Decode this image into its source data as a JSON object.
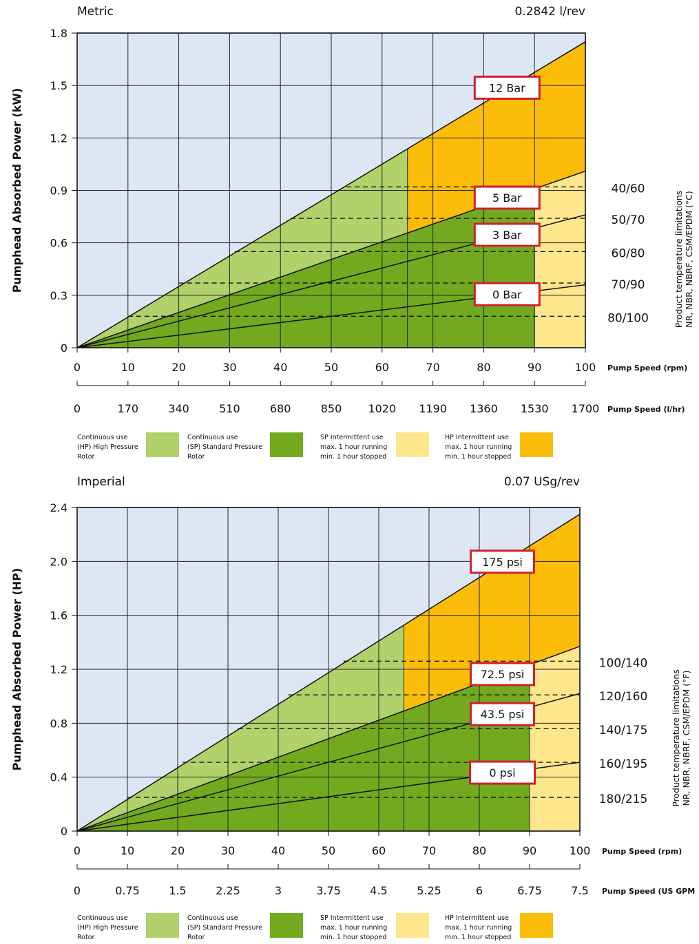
{
  "chart_data": [
    {
      "type": "area",
      "title": "Metric",
      "subtitle": "0.2842 l/rev",
      "ylabel": "Pumphead Absorbed Power (kW)",
      "ylim": [
        0,
        1.8
      ],
      "yticks": [
        "1.8",
        "1.5",
        "1.2",
        "0.9",
        "0.6",
        "0.3",
        "0"
      ],
      "xlim": [
        0,
        100
      ],
      "xticks": [
        "0",
        "10",
        "20",
        "30",
        "40",
        "50",
        "60",
        "70",
        "80",
        "90",
        "100"
      ],
      "xlabel": "Pump Speed (rpm)",
      "x2ticks": [
        "0",
        "170",
        "340",
        "510",
        "680",
        "850",
        "1020",
        "1190",
        "1360",
        "1530",
        "1700"
      ],
      "x2label": "Pump Speed (l/hr)",
      "pressure_lines": [
        {
          "label": "12 Bar",
          "end": 1.75
        },
        {
          "label": "5 Bar",
          "end": 1.01
        },
        {
          "label": "3 Bar",
          "end": 0.76
        },
        {
          "label": "0 Bar",
          "end": 0.36
        }
      ],
      "hp_limit_x": 65,
      "sp_limit_x": 90,
      "temp_lines": [
        {
          "label": "40/60",
          "y": 0.92,
          "x_start": 53
        },
        {
          "label": "50/70",
          "y": 0.74,
          "x_start": 42
        },
        {
          "label": "60/80",
          "y": 0.55,
          "x_start": 31
        },
        {
          "label": "70/90",
          "y": 0.37,
          "x_start": 20
        },
        {
          "label": "80/100",
          "y": 0.18,
          "x_start": 10
        }
      ],
      "temp_title_1": "Product temperature limitations",
      "temp_title_2": "NR, NBR, NBRF, CSM/EPDM  (°C)"
    },
    {
      "type": "area",
      "title": "Imperial",
      "subtitle": "0.07 USg/rev",
      "ylabel": "Pumphead Absorbed Power (HP)",
      "ylim": [
        0,
        2.4
      ],
      "yticks": [
        "2.4",
        "2.0",
        "1.6",
        "1.2",
        "0.8",
        "0.4",
        "0"
      ],
      "xlim": [
        0,
        100
      ],
      "xticks": [
        "0",
        "10",
        "20",
        "30",
        "40",
        "50",
        "60",
        "70",
        "80",
        "90",
        "100"
      ],
      "xlabel": "Pump Speed (rpm)",
      "x2ticks": [
        "0",
        "0.75",
        "1.5",
        "2.25",
        "3",
        "3.75",
        "4.5",
        "5.25",
        "6",
        "6.75",
        "7.5"
      ],
      "x2label": "Pump Speed (US GPM",
      "pressure_lines": [
        {
          "label": "175 psi",
          "end": 2.35
        },
        {
          "label": "72.5 psi",
          "end": 1.37
        },
        {
          "label": "43.5 psi",
          "end": 1.02
        },
        {
          "label": "0 psi",
          "end": 0.51
        }
      ],
      "hp_limit_x": 65,
      "sp_limit_x": 90,
      "temp_lines": [
        {
          "label": "100/140",
          "y": 1.26,
          "x_start": 53
        },
        {
          "label": "120/160",
          "y": 1.01,
          "x_start": 42
        },
        {
          "label": "140/175",
          "y": 0.76,
          "x_start": 32
        },
        {
          "label": "160/195",
          "y": 0.51,
          "x_start": 21
        },
        {
          "label": "180/215",
          "y": 0.25,
          "x_start": 10
        }
      ],
      "temp_title_1": "Product temperature limitations",
      "temp_title_2": "NR, NBR, NBRF, CSM/EPDM  (°F)"
    }
  ],
  "legend": [
    {
      "lines": [
        "Continuous use",
        "(HP) High Pressure",
        "Rotor"
      ],
      "color": "#b1d16a"
    },
    {
      "lines": [
        "Continuous use",
        "(SP) Standard Pressure",
        "Rotor"
      ],
      "color": "#72a91e"
    },
    {
      "lines": [
        "SP Intermittent use",
        "max. 1 hour running",
        "min. 1 hour stopped"
      ],
      "color": "#fde68c"
    },
    {
      "lines": [
        "HP Intermittent use",
        "max. 1 hour running",
        "min. 1 hour stopped"
      ],
      "color": "#fbbd0a"
    }
  ],
  "colors": {
    "background": "#dde7f3",
    "hp_continuous": "#b1d16a",
    "sp_continuous": "#72a91e",
    "sp_intermittent": "#fde68c",
    "hp_intermittent": "#fbbd0a",
    "label_border": "#d0202e"
  }
}
